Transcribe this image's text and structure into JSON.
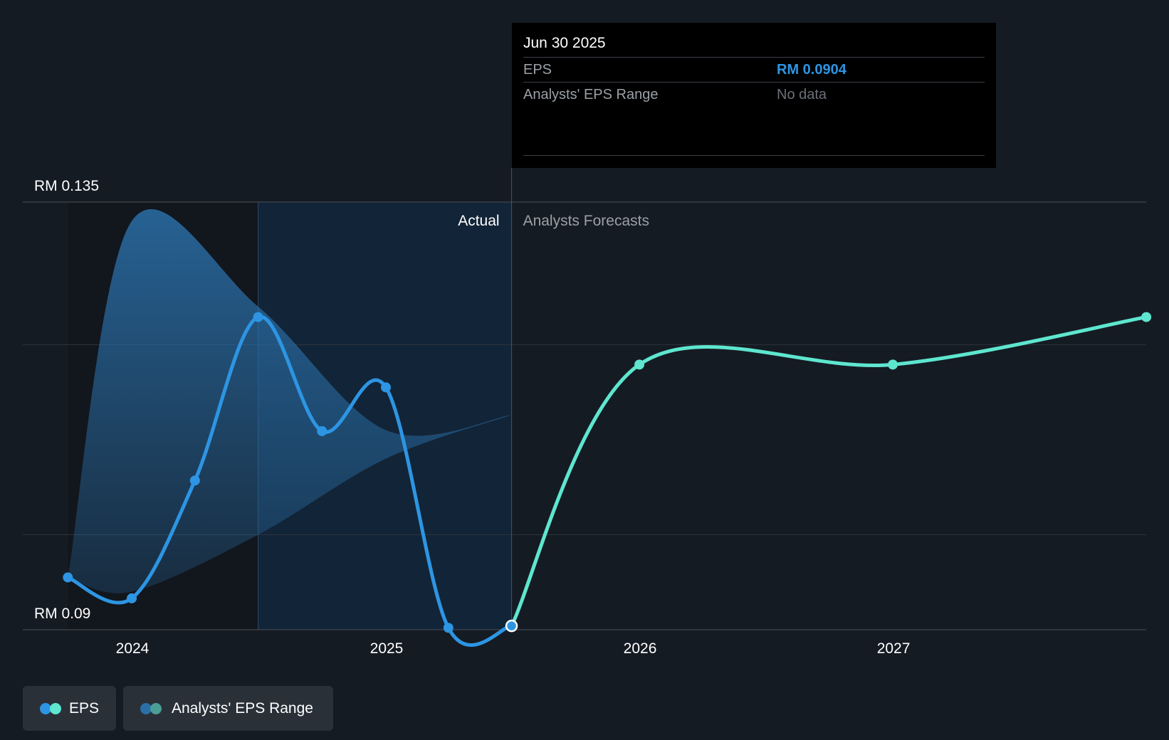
{
  "chart_data": {
    "type": "line",
    "x_ticks": [
      "2024",
      "2025",
      "2026",
      "2027"
    ],
    "y_labels": {
      "top": "RM 0.135",
      "bottom": "RM 0.09"
    },
    "ylim": [
      0.09,
      0.135
    ],
    "grid": true,
    "legend_position": "bottom-left",
    "sections": {
      "actual": "Actual",
      "forecast": "Analysts Forecasts"
    },
    "series": [
      {
        "name": "EPS",
        "kind": "actual",
        "color": "#2d95e3",
        "points": [
          {
            "x": "2023-09-30",
            "y": 0.0955
          },
          {
            "x": "2023-12-31",
            "y": 0.0933
          },
          {
            "x": "2024-03-31",
            "y": 0.1057
          },
          {
            "x": "2024-06-30",
            "y": 0.1229
          },
          {
            "x": "2024-09-30",
            "y": 0.1109
          },
          {
            "x": "2024-12-31",
            "y": 0.1155
          },
          {
            "x": "2025-03-31",
            "y": 0.0902
          },
          {
            "x": "2025-06-30",
            "y": 0.0904
          }
        ]
      },
      {
        "name": "EPS",
        "kind": "forecast",
        "color": "#5ee6cf",
        "points": [
          {
            "x": "2025-06-30",
            "y": 0.0904
          },
          {
            "x": "2025-12-31",
            "y": 0.1179
          },
          {
            "x": "2026-12-31",
            "y": 0.1179
          },
          {
            "x": "2027-12-31",
            "y": 0.1229
          }
        ]
      }
    ],
    "range_band": {
      "name": "Analysts' EPS Range",
      "color": "#2a6fa8",
      "upper": [
        {
          "x": "2023-09-30",
          "y": 0.0955
        },
        {
          "x": "2023-12-31",
          "y": 0.133
        },
        {
          "x": "2024-06-30",
          "y": 0.124
        },
        {
          "x": "2024-12-31",
          "y": 0.111
        },
        {
          "x": "2025-06-30",
          "y": 0.1126
        }
      ],
      "lower": [
        {
          "x": "2023-09-30",
          "y": 0.0955
        },
        {
          "x": "2023-12-31",
          "y": 0.094
        },
        {
          "x": "2024-06-30",
          "y": 0.1
        },
        {
          "x": "2024-12-31",
          "y": 0.108
        },
        {
          "x": "2025-06-30",
          "y": 0.1126
        }
      ]
    },
    "tooltip": {
      "date": "Jun 30 2025",
      "rows": [
        {
          "label": "EPS",
          "value": "RM 0.0904"
        },
        {
          "label": "Analysts' EPS Range",
          "value": "No data"
        }
      ]
    },
    "legend": [
      {
        "label": "EPS",
        "colors": [
          "#2d95e3",
          "#5ee6cf"
        ]
      },
      {
        "label": "Analysts' EPS Range",
        "colors": [
          "#2a6fa8",
          "#4a9e96"
        ]
      }
    ]
  }
}
